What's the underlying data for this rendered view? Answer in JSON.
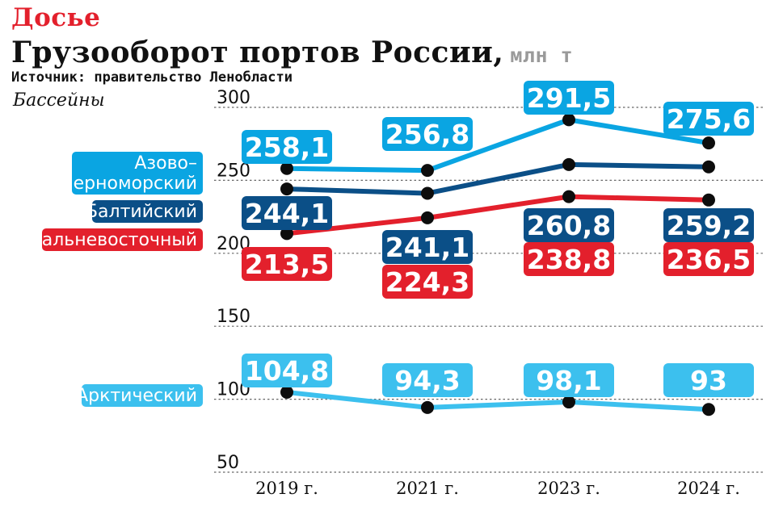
{
  "header": {
    "kicker": "Досье",
    "title": "Грузооборот портов России,",
    "unit": "млн т",
    "source": "Источник: правительство Ленобласти",
    "basins_label": "Бассейны"
  },
  "colors": {
    "azov": "#0aa5e2",
    "baltic": "#0b4f87",
    "fareast": "#e3202c",
    "arctic": "#3cc0ee",
    "grid": "#666666",
    "dot": "#0d0d0d"
  },
  "chart_data": {
    "type": "line",
    "categories": [
      "2019 г.",
      "2021 г.",
      "2023 г.",
      "2024 г."
    ],
    "y_ticks": [
      "300",
      "250",
      "200",
      "150",
      "100",
      "50"
    ],
    "ylim": [
      50,
      300
    ],
    "grid": true,
    "series": [
      {
        "name": "Азово–Черноморский",
        "name_lines": [
          "Азово–",
          "Черноморский"
        ],
        "color_key": "azov",
        "values": [
          258.1,
          256.8,
          291.5,
          275.6
        ],
        "labels": [
          "258,1",
          "256,8",
          "291,5",
          "275,6"
        ]
      },
      {
        "name": "Балтийский",
        "name_lines": [
          "Балтийский"
        ],
        "color_key": "baltic",
        "values": [
          244.1,
          241.1,
          260.8,
          259.2
        ],
        "labels": [
          "244,1",
          "241,1",
          "260,8",
          "259,2"
        ]
      },
      {
        "name": "Дальневосточный",
        "name_lines": [
          "Дальневосточный"
        ],
        "color_key": "fareast",
        "values": [
          213.5,
          224.3,
          238.8,
          236.5
        ],
        "labels": [
          "213,5",
          "224,3",
          "238,8",
          "236,5"
        ]
      },
      {
        "name": "Арктический",
        "name_lines": [
          "Арктический"
        ],
        "color_key": "arctic",
        "values": [
          104.8,
          94.3,
          98.1,
          93
        ],
        "labels": [
          "104,8",
          "94,3",
          "98,1",
          "93"
        ]
      }
    ]
  }
}
